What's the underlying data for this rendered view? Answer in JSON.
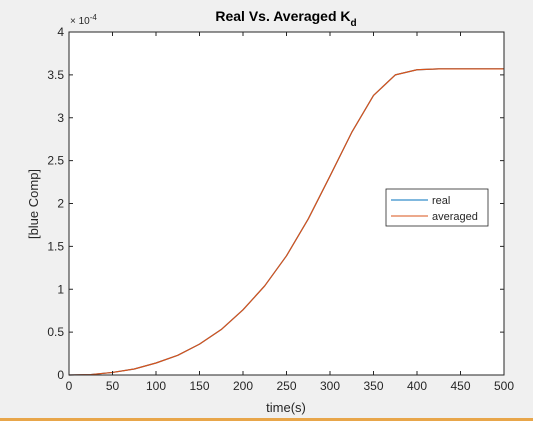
{
  "chart_data": {
    "type": "line",
    "title": "Real Vs. Averaged K",
    "title_subscript": "d",
    "xlabel": "time(s)",
    "ylabel": "[blue Comp]",
    "y_exponent_base": "× 10",
    "y_exponent_power": "-4",
    "xlim": [
      0,
      500
    ],
    "ylim": [
      0,
      4
    ],
    "x_ticks": [
      0,
      50,
      100,
      150,
      200,
      250,
      300,
      350,
      400,
      450,
      500
    ],
    "y_ticks": [
      0,
      0.5,
      1,
      1.5,
      2,
      2.5,
      3,
      3.5,
      4
    ],
    "x_tick_labels": [
      "0",
      "50",
      "100",
      "150",
      "200",
      "250",
      "300",
      "350",
      "400",
      "450",
      "500"
    ],
    "y_tick_labels": [
      "0",
      "0.5",
      "1",
      "1.5",
      "2",
      "2.5",
      "3",
      "3.5",
      "4"
    ],
    "grid": false,
    "legend_position": "right-center",
    "x": [
      0,
      25,
      50,
      75,
      100,
      125,
      150,
      175,
      200,
      225,
      250,
      275,
      300,
      325,
      350,
      375,
      400,
      425,
      450,
      475,
      500
    ],
    "series": [
      {
        "name": "real",
        "color": "#0072bd",
        "values": [
          0,
          0.005,
          0.03,
          0.07,
          0.14,
          0.23,
          0.36,
          0.53,
          0.76,
          1.04,
          1.39,
          1.82,
          2.32,
          2.83,
          3.26,
          3.5,
          3.56,
          3.57,
          3.57,
          3.57,
          3.57
        ]
      },
      {
        "name": "averaged",
        "color": "#d95319",
        "values": [
          0,
          0.005,
          0.03,
          0.07,
          0.14,
          0.23,
          0.36,
          0.53,
          0.76,
          1.04,
          1.39,
          1.82,
          2.32,
          2.83,
          3.26,
          3.5,
          3.56,
          3.57,
          3.57,
          3.57,
          3.57
        ]
      }
    ]
  }
}
